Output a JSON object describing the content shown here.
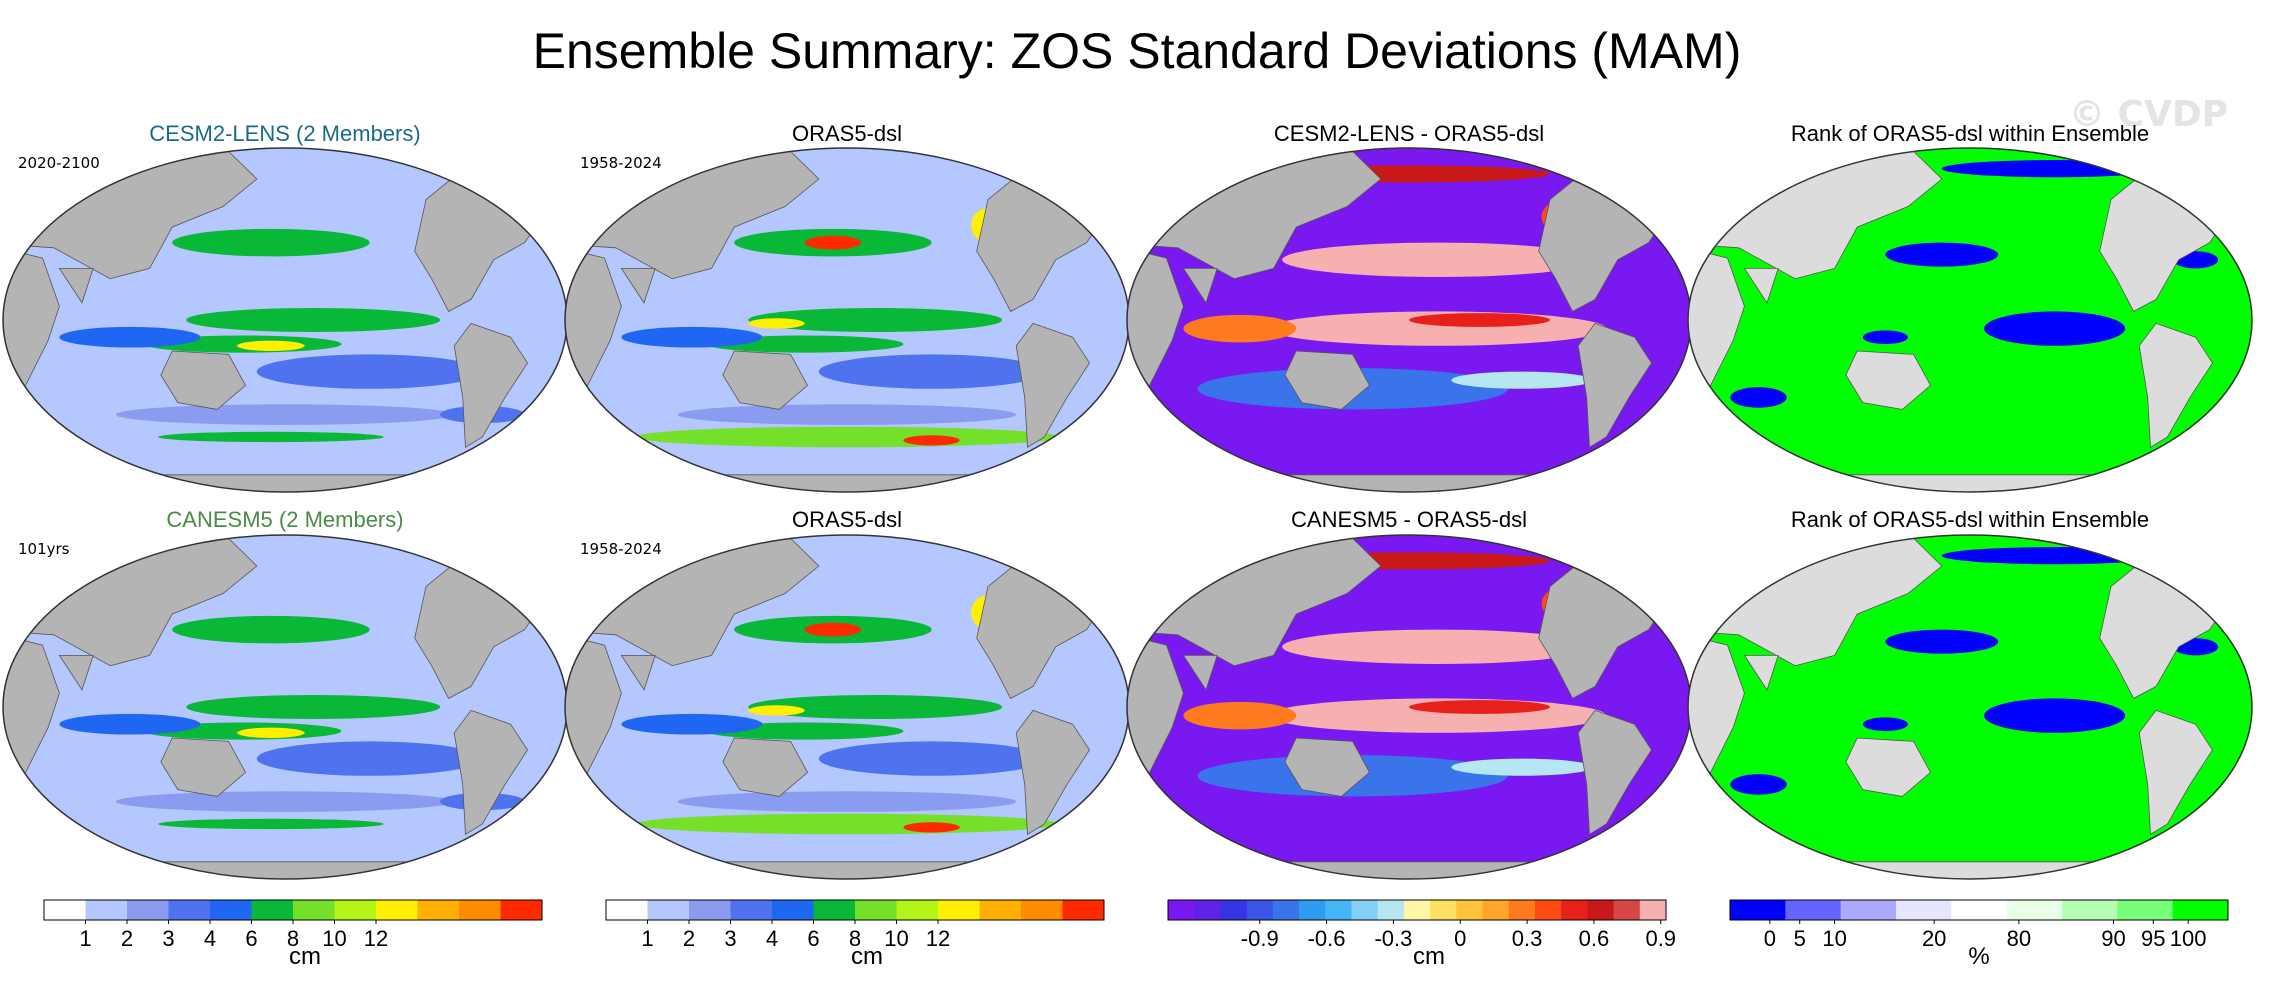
{
  "title": "Ensemble Summary: ZOS Standard Deviations (MAM)",
  "watermark": "© CVDP",
  "colors": {
    "land": "#b4b4b4",
    "rank_land": "#dcdcdc",
    "std_scale": [
      "#ffffff",
      "#b4c7ff",
      "#8a9cf0",
      "#4f73ee",
      "#1f67f2",
      "#08b836",
      "#74e02a",
      "#b5f419",
      "#fff000",
      "#ffb000",
      "#ff8c00",
      "#ff2a00"
    ],
    "diff_scale": [
      "#7a18f2",
      "#5f22e6",
      "#3535e6",
      "#3a55e6",
      "#3a74ea",
      "#2f9cf0",
      "#46b5f5",
      "#82d0f5",
      "#b6e6f2",
      "#fff6a8",
      "#ffe060",
      "#ffc43a",
      "#ffa52a",
      "#ff7a1e",
      "#ff4a14",
      "#e8201a",
      "#c81818",
      "#d64646",
      "#f6b0b0"
    ],
    "rank_scale": [
      "#0000ff",
      "#6464ff",
      "#aaaaff",
      "#e6e6ff",
      "#ffffff",
      "#e8ffe8",
      "#b4ffb4",
      "#78ff78",
      "#00ff00"
    ]
  },
  "chart_data": [
    {
      "type": "heatmap",
      "title": "CESM2-LENS (2 Members)",
      "subtitle": "2020-2100",
      "title_color": "#1a6a8a",
      "variable": "ZOS standard deviation",
      "units": "cm",
      "projection": "Robinson",
      "scale": "std",
      "dominant_values_cm": [
        1,
        2,
        3,
        4,
        6
      ]
    },
    {
      "type": "heatmap",
      "title": "ORAS5-dsl",
      "subtitle": "1958-2024",
      "title_color": "#000000",
      "variable": "ZOS standard deviation",
      "units": "cm",
      "projection": "Robinson",
      "scale": "std",
      "dominant_values_cm": [
        2,
        3,
        4,
        6,
        8,
        10
      ]
    },
    {
      "type": "heatmap",
      "title": "CESM2-LENS - ORAS5-dsl",
      "subtitle": "",
      "title_color": "#000000",
      "variable": "ZOS std difference",
      "units": "cm",
      "projection": "Robinson",
      "scale": "diff",
      "dominant_values_cm": [
        -0.9,
        -0.6,
        0.3,
        0.9
      ]
    },
    {
      "type": "heatmap",
      "title": "Rank of ORAS5-dsl within Ensemble",
      "subtitle": "",
      "title_color": "#000000",
      "variable": "Rank",
      "units": "%",
      "projection": "Robinson",
      "scale": "rank",
      "dominant_values_pct": [
        0,
        100
      ]
    },
    {
      "type": "heatmap",
      "title": "CANESM5 (2 Members)",
      "subtitle": "101yrs",
      "title_color": "#4a8a4a",
      "variable": "ZOS standard deviation",
      "units": "cm",
      "projection": "Robinson",
      "scale": "std",
      "dominant_values_cm": [
        1,
        2,
        3,
        4
      ]
    },
    {
      "type": "heatmap",
      "title": "ORAS5-dsl",
      "subtitle": "1958-2024",
      "title_color": "#000000",
      "variable": "ZOS standard deviation",
      "units": "cm",
      "projection": "Robinson",
      "scale": "std",
      "dominant_values_cm": [
        2,
        3,
        4,
        6,
        8,
        10
      ]
    },
    {
      "type": "heatmap",
      "title": "CANESM5 - ORAS5-dsl",
      "subtitle": "",
      "title_color": "#000000",
      "variable": "ZOS std difference",
      "units": "cm",
      "projection": "Robinson",
      "scale": "diff",
      "dominant_values_cm": [
        -0.9,
        0.9
      ]
    },
    {
      "type": "heatmap",
      "title": "Rank of ORAS5-dsl within Ensemble",
      "subtitle": "",
      "title_color": "#000000",
      "variable": "Rank",
      "units": "%",
      "projection": "Robinson",
      "scale": "rank",
      "dominant_values_pct": [
        0,
        100
      ]
    }
  ],
  "colorbars": [
    {
      "name": "std-1",
      "units": "cm",
      "labels": [
        "1",
        "2",
        "3",
        "4",
        "6",
        "8",
        "10",
        "12"
      ],
      "boundaries": [
        1,
        2,
        3,
        4,
        6,
        8,
        10,
        12
      ],
      "scale": "std"
    },
    {
      "name": "std-2",
      "units": "cm",
      "labels": [
        "1",
        "2",
        "3",
        "4",
        "6",
        "8",
        "10",
        "12"
      ],
      "boundaries": [
        1,
        2,
        3,
        4,
        6,
        8,
        10,
        12
      ],
      "scale": "std"
    },
    {
      "name": "diff",
      "units": "cm",
      "labels": [
        "-0.9",
        "-0.6",
        "-0.3",
        "0",
        "0.3",
        "0.6",
        "0.9"
      ],
      "boundaries": [
        -0.9,
        -0.6,
        -0.3,
        0,
        0.3,
        0.6,
        0.9
      ],
      "scale": "diff"
    },
    {
      "name": "rank",
      "units": "%",
      "labels": [
        "0",
        "5",
        "10",
        "20",
        "80",
        "90",
        "95",
        "100"
      ],
      "boundaries": [
        0,
        5,
        10,
        20,
        80,
        90,
        95,
        100
      ],
      "scale": "rank"
    }
  ]
}
